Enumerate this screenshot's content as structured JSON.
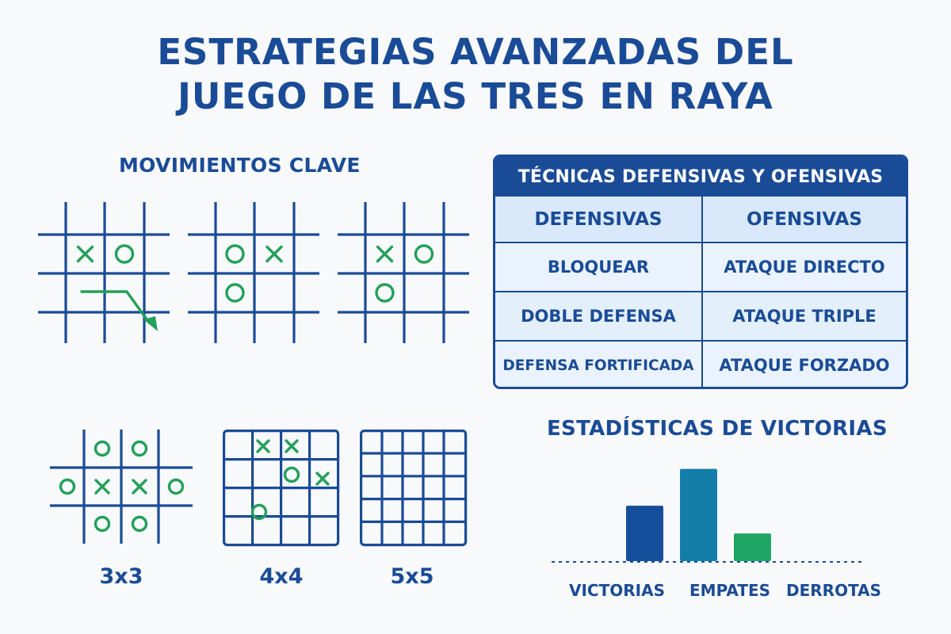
{
  "title": {
    "line1": "ESTRATEGIAS AVANZADAS DEL",
    "line2": "JUEGO DE LAS TRES EN RAYA"
  },
  "key_moves": {
    "title": "MOVIMIENTOS CLAVE",
    "boards": [
      {
        "marks": [
          [
            "X",
            "O",
            ""
          ],
          [
            "",
            "",
            ""
          ],
          [
            "",
            "",
            ""
          ]
        ],
        "arrow": true
      },
      {
        "marks": [
          [
            "O",
            "X",
            ""
          ],
          [
            "O",
            "",
            ""
          ],
          [
            "",
            "",
            ""
          ]
        ],
        "arrow": false
      },
      {
        "marks": [
          [
            "X",
            "O",
            ""
          ],
          [
            "O",
            "",
            ""
          ],
          [
            "",
            "",
            ""
          ]
        ],
        "arrow": false
      }
    ]
  },
  "techniques_table": {
    "header": "TÉCNICAS DEFENSIVAS Y OFENSIVAS",
    "columns": [
      "DEFENSIVAS",
      "OFENSIVAS"
    ],
    "rows": [
      [
        "BLOQUEAR",
        "ATAQUE DIRECTO"
      ],
      [
        "DOBLE DEFENSA",
        "ATAQUE TRIPLE"
      ],
      [
        "DEFENSA FORTIFICADA",
        "ATAQUE FORZADO"
      ]
    ]
  },
  "board_sizes": [
    {
      "label": "3x3"
    },
    {
      "label": "4x4"
    },
    {
      "label": "5x5"
    }
  ],
  "stats": {
    "title": "ESTADÍSTICAS DE VICTORIAS"
  },
  "chart_data": {
    "type": "bar",
    "title": "ESTADÍSTICAS DE VICTORIAS",
    "categories": [
      "VICTORIAS",
      "EMPATES",
      "DERROTAS"
    ],
    "values": [
      3,
      5,
      1.5
    ],
    "bar_colors": [
      "#154f9c",
      "#137fa8",
      "#1fa563"
    ],
    "ylim": [
      0,
      5.5
    ],
    "grid": false,
    "baseline": "dotted"
  },
  "colors": {
    "primary": "#1a4b96",
    "accent_green": "#23a05a",
    "table_fill": "#eaf3fd"
  }
}
